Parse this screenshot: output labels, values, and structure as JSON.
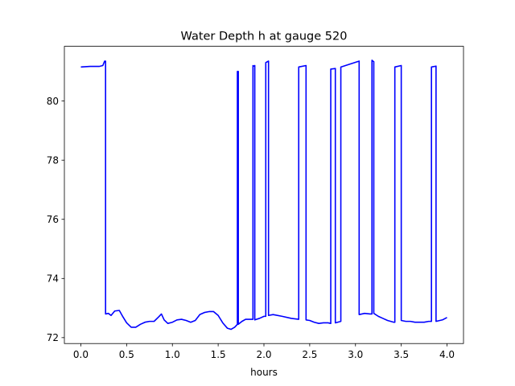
{
  "chart_data": {
    "type": "line",
    "title": "Water Depth h at gauge 520",
    "xlabel": "hours",
    "ylabel": "",
    "xlim": [
      -0.18,
      4.18
    ],
    "ylim": [
      71.8,
      81.85
    ],
    "xticks": [
      0.0,
      0.5,
      1.0,
      1.5,
      2.0,
      2.5,
      3.0,
      3.5,
      4.0
    ],
    "xtick_labels": [
      "0.0",
      "0.5",
      "1.0",
      "1.5",
      "2.0",
      "2.5",
      "3.0",
      "3.5",
      "4.0"
    ],
    "yticks": [
      72,
      74,
      76,
      78,
      80
    ],
    "ytick_labels": [
      "72",
      "74",
      "76",
      "78",
      "80"
    ],
    "grid": false,
    "series": [
      {
        "color": "#0000ff",
        "x": [
          0.0,
          0.1,
          0.2,
          0.24,
          0.26,
          0.27,
          0.27,
          0.3,
          0.33,
          0.37,
          0.42,
          0.46,
          0.5,
          0.55,
          0.6,
          0.65,
          0.7,
          0.75,
          0.8,
          0.85,
          0.88,
          0.91,
          0.95,
          1.0,
          1.05,
          1.1,
          1.15,
          1.2,
          1.25,
          1.3,
          1.35,
          1.4,
          1.45,
          1.5,
          1.55,
          1.6,
          1.64,
          1.68,
          1.71,
          1.71,
          1.72,
          1.72,
          1.76,
          1.8,
          1.85,
          1.88,
          1.88,
          1.89,
          1.9,
          1.9,
          1.95,
          2.0,
          2.02,
          2.02,
          2.05,
          2.05,
          2.1,
          2.2,
          2.3,
          2.38,
          2.38,
          2.46,
          2.46,
          2.5,
          2.55,
          2.6,
          2.65,
          2.7,
          2.73,
          2.73,
          2.78,
          2.78,
          2.84,
          2.84,
          3.04,
          3.04,
          3.1,
          3.16,
          3.18,
          3.18,
          3.19,
          3.2,
          3.2,
          3.25,
          3.3,
          3.35,
          3.42,
          3.43,
          3.43,
          3.5,
          3.5,
          3.55,
          3.6,
          3.65,
          3.7,
          3.75,
          3.8,
          3.83,
          3.83,
          3.88,
          3.88,
          3.95,
          4.0
        ],
        "y": [
          81.15,
          81.17,
          81.17,
          81.2,
          81.35,
          81.35,
          72.8,
          72.82,
          72.75,
          72.9,
          72.92,
          72.7,
          72.5,
          72.35,
          72.35,
          72.45,
          72.52,
          72.55,
          72.55,
          72.7,
          72.8,
          72.6,
          72.48,
          72.52,
          72.6,
          72.62,
          72.58,
          72.52,
          72.58,
          72.78,
          72.85,
          72.88,
          72.88,
          72.75,
          72.5,
          72.32,
          72.28,
          72.35,
          72.45,
          81.0,
          81.0,
          72.45,
          72.55,
          72.62,
          72.62,
          72.62,
          81.2,
          81.18,
          81.2,
          72.6,
          72.65,
          72.72,
          72.72,
          81.3,
          81.35,
          72.75,
          72.78,
          72.72,
          72.65,
          72.62,
          81.15,
          81.2,
          72.6,
          72.58,
          72.52,
          72.48,
          72.5,
          72.5,
          72.48,
          81.08,
          81.1,
          72.5,
          72.55,
          81.15,
          81.35,
          72.78,
          72.82,
          72.8,
          72.8,
          81.38,
          81.35,
          81.33,
          72.82,
          72.72,
          72.65,
          72.58,
          72.52,
          72.52,
          81.15,
          81.2,
          72.58,
          72.55,
          72.55,
          72.52,
          72.52,
          72.52,
          72.55,
          72.55,
          81.15,
          81.18,
          72.55,
          72.6,
          72.68
        ]
      }
    ]
  }
}
